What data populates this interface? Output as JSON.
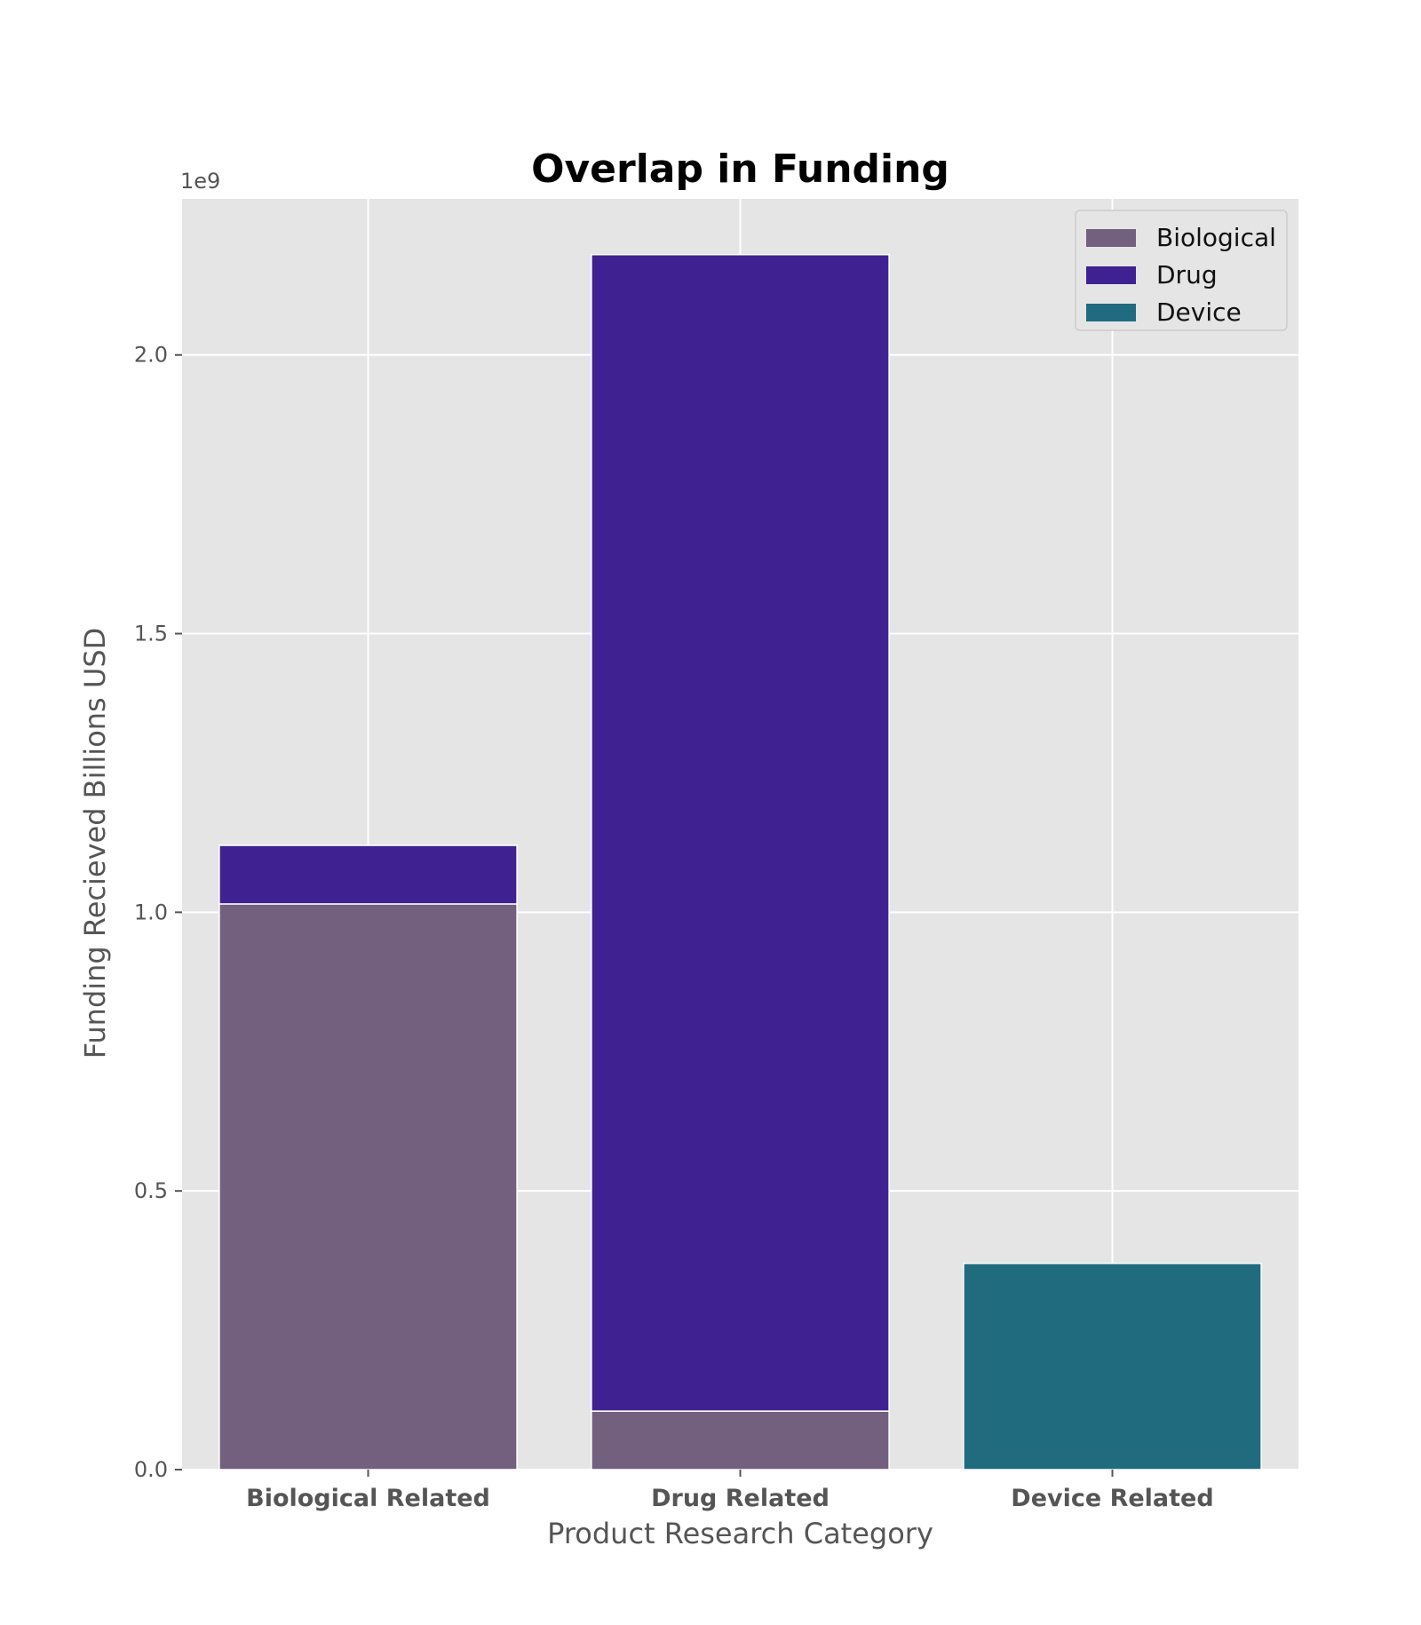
{
  "chart_data": {
    "type": "bar",
    "stacked": true,
    "title": "Overlap in Funding",
    "xlabel": "Product Research Category",
    "ylabel": "Funding Recieved Billions USD",
    "y_offset_label": "1e9",
    "categories": [
      "Biological Related",
      "Drug Related",
      "Device Related"
    ],
    "series": [
      {
        "name": "Biological",
        "color": "#73607f",
        "values": [
          1.015,
          0.105,
          0
        ]
      },
      {
        "name": "Drug",
        "color": "#3f2192",
        "values": [
          0.105,
          2.075,
          0
        ]
      },
      {
        "name": "Device",
        "color": "#216b7e",
        "values": [
          0,
          0,
          0.37
        ]
      }
    ],
    "ylim": [
      0,
      2.28
    ],
    "yticks": [
      0.0,
      0.5,
      1.0,
      1.5,
      2.0
    ],
    "ytick_labels": [
      "0.0",
      "0.5",
      "1.0",
      "1.5",
      "2.0"
    ],
    "grid": true,
    "legend_position": "top-right",
    "plot_background": "#e5e5e5"
  }
}
